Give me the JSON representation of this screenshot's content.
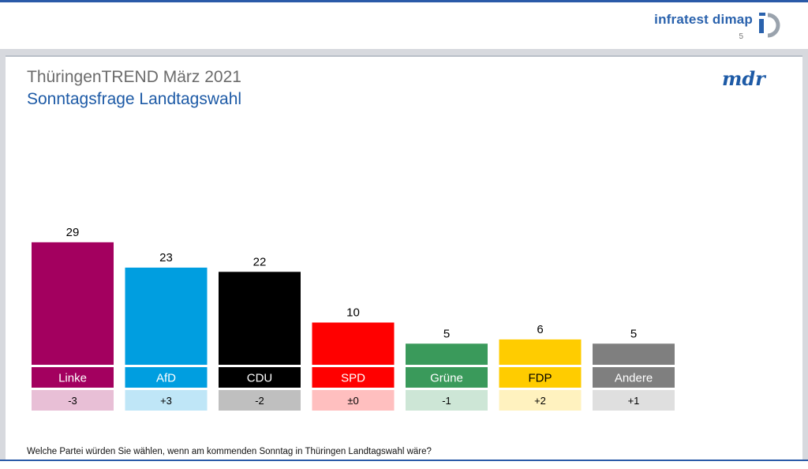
{
  "header": {
    "brand": "infratest dimap",
    "page_number": "5",
    "brand_logo_icon": "infratest-dimap-logo-icon"
  },
  "slide": {
    "title": "ThüringenTREND März 2021",
    "subtitle": "Sonntagsfrage Landtagswahl",
    "mdr_logo": "mdr",
    "footnote": "Welche Partei würden Sie wählen, wenn am kommenden Sonntag in Thüringen Landtagswahl wäre?"
  },
  "chart_data": {
    "type": "bar",
    "categories": [
      "Linke",
      "AfD",
      "CDU",
      "SPD",
      "Grüne",
      "FDP",
      "Andere"
    ],
    "values": [
      29,
      23,
      22,
      10,
      5,
      6,
      5
    ],
    "changes": [
      "-3",
      "+3",
      "-2",
      "±0",
      "-1",
      "+2",
      "+1"
    ],
    "colors": [
      "#a3005f",
      "#009ee0",
      "#000000",
      "#ff0000",
      "#3a9a5b",
      "#ffcc00",
      "#7f7f7f"
    ],
    "label_text_colors": [
      "#ffffff",
      "#ffffff",
      "#ffffff",
      "#ffffff",
      "#ffffff",
      "#000000",
      "#ffffff"
    ],
    "change_colors": [
      "#e8bfd6",
      "#bfe6f7",
      "#bfbfbf",
      "#ffbfbf",
      "#cde6d6",
      "#fff2bf",
      "#dfdfdf"
    ],
    "grid": false,
    "legend": "none"
  }
}
